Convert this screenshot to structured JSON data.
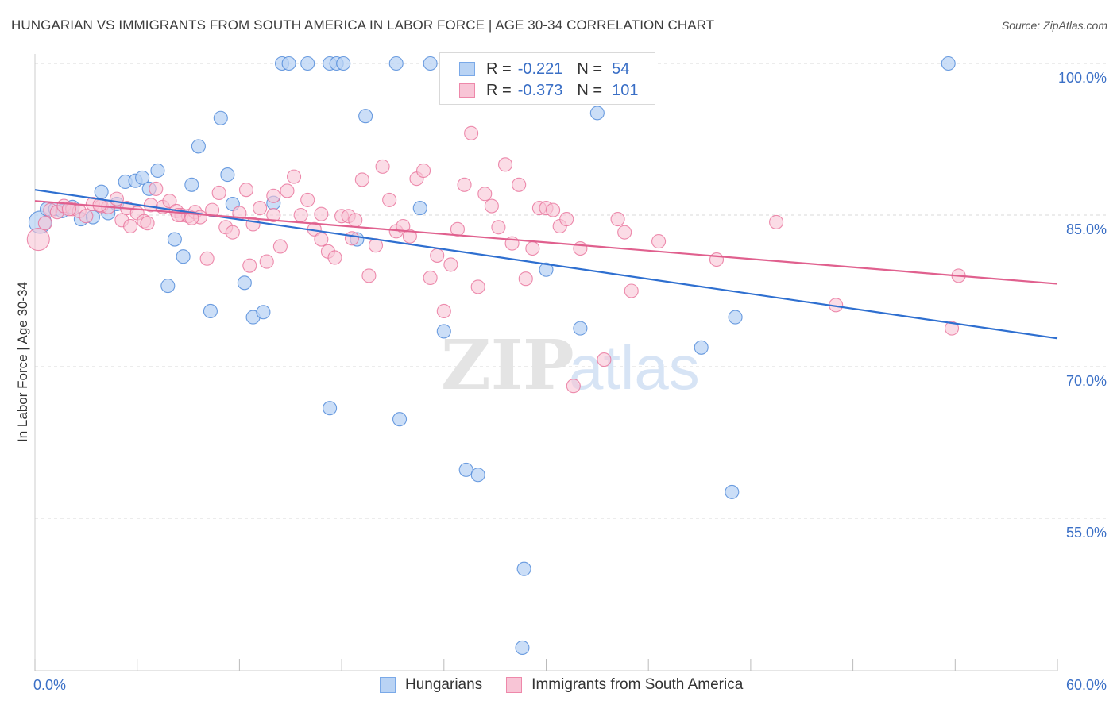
{
  "header": {
    "title": "HUNGARIAN VS IMMIGRANTS FROM SOUTH AMERICA IN LABOR FORCE | AGE 30-34 CORRELATION CHART",
    "source": "Source: ZipAtlas.com"
  },
  "watermark": {
    "zip": "ZIP",
    "atlas": "atlas"
  },
  "legend_top": {
    "rows": [
      {
        "r_label": "R =",
        "r_value": "-0.221",
        "n_label": "N =",
        "n_value": "54",
        "color": "#7aa9e8",
        "fill": "#b9d3f4"
      },
      {
        "r_label": "R =",
        "r_value": "-0.373",
        "n_label": "N =",
        "n_value": "101",
        "color": "#ee88aa",
        "fill": "#f8c5d6"
      }
    ]
  },
  "legend_bottom": {
    "items": [
      {
        "label": "Hungarians",
        "color": "#7aa9e8",
        "fill": "#b9d3f4"
      },
      {
        "label": "Immigrants from South America",
        "color": "#ee88aa",
        "fill": "#f8c5d6"
      }
    ]
  },
  "chart_data": {
    "type": "scatter",
    "title": "HUNGARIAN VS IMMIGRANTS FROM SOUTH AMERICA IN LABOR FORCE | AGE 30-34 CORRELATION CHART",
    "xlabel": "",
    "ylabel": "In Labor Force | Age 30-34",
    "xlim": [
      0,
      60
    ],
    "ylim": [
      41,
      102
    ],
    "x_tick_labels": [
      {
        "value": 0,
        "label": "0.0%"
      },
      {
        "value": 60,
        "label": "60.0%"
      }
    ],
    "y_tick_labels": [
      {
        "value": 100,
        "label": "100.0%"
      },
      {
        "value": 85,
        "label": "85.0%"
      },
      {
        "value": 70,
        "label": "70.0%"
      },
      {
        "value": 55,
        "label": "55.0%"
      }
    ],
    "y_gridlines": [
      100,
      85,
      70,
      55
    ],
    "x_minor_ticks": [
      0,
      6,
      12,
      18,
      24,
      30,
      36,
      42,
      48,
      54,
      60
    ],
    "grid": true,
    "legend_position": "top-center",
    "series": [
      {
        "name": "Hungarians",
        "color": "#4a86d8",
        "fill": "#b9d3f4",
        "trend": {
          "x": [
            0,
            60
          ],
          "y": [
            87.5,
            72.8
          ]
        },
        "points": [
          [
            0.3,
            84.3
          ],
          [
            0.7,
            85.6
          ],
          [
            1.2,
            85.6
          ],
          [
            1.6,
            85.4
          ],
          [
            2.2,
            85.8
          ],
          [
            2.7,
            84.6
          ],
          [
            3.4,
            84.8
          ],
          [
            3.9,
            87.3
          ],
          [
            4.3,
            85.2
          ],
          [
            4.8,
            86.1
          ],
          [
            5.3,
            88.3
          ],
          [
            5.9,
            88.4
          ],
          [
            6.3,
            88.7
          ],
          [
            6.7,
            87.6
          ],
          [
            7.2,
            89.4
          ],
          [
            7.8,
            78.0
          ],
          [
            8.2,
            82.6
          ],
          [
            8.7,
            80.9
          ],
          [
            9.2,
            88.0
          ],
          [
            9.6,
            91.8
          ],
          [
            10.3,
            75.5
          ],
          [
            10.9,
            94.6
          ],
          [
            11.3,
            89.0
          ],
          [
            11.6,
            86.1
          ],
          [
            12.3,
            78.3
          ],
          [
            12.8,
            74.9
          ],
          [
            13.4,
            75.4
          ],
          [
            14.0,
            86.2
          ],
          [
            14.5,
            100.0
          ],
          [
            14.9,
            100.0
          ],
          [
            16.0,
            100.0
          ],
          [
            17.3,
            100.0
          ],
          [
            17.7,
            100.0
          ],
          [
            18.1,
            100.0
          ],
          [
            17.3,
            65.9
          ],
          [
            18.9,
            82.6
          ],
          [
            19.4,
            94.8
          ],
          [
            21.2,
            100.0
          ],
          [
            21.4,
            64.8
          ],
          [
            22.6,
            85.7
          ],
          [
            23.2,
            100.0
          ],
          [
            24.0,
            73.5
          ],
          [
            25.3,
            59.8
          ],
          [
            26.0,
            59.3
          ],
          [
            27.2,
            100.0
          ],
          [
            28.7,
            50.0
          ],
          [
            28.6,
            42.2
          ],
          [
            30.0,
            79.6
          ],
          [
            32.0,
            73.8
          ],
          [
            33.0,
            95.1
          ],
          [
            39.1,
            71.9
          ],
          [
            41.1,
            74.9
          ],
          [
            40.9,
            57.6
          ],
          [
            53.6,
            100.0
          ]
        ]
      },
      {
        "name": "Immigrants from South America",
        "color": "#e8709a",
        "fill": "#f8c5d6",
        "trend": {
          "x": [
            0,
            60
          ],
          "y": [
            86.4,
            78.2
          ]
        },
        "points": [
          [
            0.2,
            82.6
          ],
          [
            0.6,
            84.2
          ],
          [
            0.9,
            85.5
          ],
          [
            1.3,
            85.3
          ],
          [
            1.7,
            85.9
          ],
          [
            2.2,
            85.6
          ],
          [
            2.6,
            85.4
          ],
          [
            3.0,
            84.9
          ],
          [
            3.4,
            86.1
          ],
          [
            3.9,
            85.9
          ],
          [
            4.3,
            85.8
          ],
          [
            4.8,
            86.6
          ],
          [
            5.1,
            84.5
          ],
          [
            5.4,
            85.7
          ],
          [
            5.6,
            83.9
          ],
          [
            6.0,
            85.2
          ],
          [
            6.4,
            84.4
          ],
          [
            6.8,
            86.0
          ],
          [
            7.1,
            87.6
          ],
          [
            7.5,
            85.8
          ],
          [
            7.9,
            86.4
          ],
          [
            8.3,
            85.4
          ],
          [
            8.6,
            85.0
          ],
          [
            9.0,
            84.9
          ],
          [
            9.4,
            85.3
          ],
          [
            9.7,
            84.8
          ],
          [
            10.1,
            80.7
          ],
          [
            10.4,
            85.5
          ],
          [
            10.8,
            87.2
          ],
          [
            11.2,
            83.8
          ],
          [
            11.6,
            83.3
          ],
          [
            12.0,
            85.2
          ],
          [
            12.4,
            87.5
          ],
          [
            12.8,
            84.1
          ],
          [
            13.2,
            85.7
          ],
          [
            13.6,
            80.4
          ],
          [
            14.0,
            85.0
          ],
          [
            14.4,
            81.9
          ],
          [
            14.8,
            87.4
          ],
          [
            15.2,
            88.8
          ],
          [
            15.6,
            85.0
          ],
          [
            16.0,
            86.5
          ],
          [
            16.4,
            83.6
          ],
          [
            16.8,
            82.6
          ],
          [
            17.2,
            81.4
          ],
          [
            17.6,
            80.8
          ],
          [
            18.0,
            84.9
          ],
          [
            18.4,
            84.9
          ],
          [
            18.8,
            84.5
          ],
          [
            19.2,
            88.5
          ],
          [
            19.6,
            79.0
          ],
          [
            20.0,
            82.0
          ],
          [
            20.4,
            89.8
          ],
          [
            20.8,
            86.5
          ],
          [
            21.2,
            83.4
          ],
          [
            21.6,
            83.9
          ],
          [
            22.0,
            82.9
          ],
          [
            22.4,
            88.6
          ],
          [
            22.8,
            89.4
          ],
          [
            23.2,
            78.8
          ],
          [
            23.6,
            81.0
          ],
          [
            24.0,
            75.5
          ],
          [
            24.4,
            80.1
          ],
          [
            24.8,
            83.6
          ],
          [
            25.2,
            88.0
          ],
          [
            25.6,
            93.1
          ],
          [
            26.0,
            77.9
          ],
          [
            26.4,
            87.1
          ],
          [
            26.8,
            85.9
          ],
          [
            27.2,
            83.8
          ],
          [
            27.6,
            90.0
          ],
          [
            28.0,
            82.2
          ],
          [
            28.4,
            88.0
          ],
          [
            28.8,
            78.7
          ],
          [
            29.2,
            81.7
          ],
          [
            29.6,
            85.7
          ],
          [
            30.0,
            85.7
          ],
          [
            30.4,
            85.5
          ],
          [
            30.8,
            83.9
          ],
          [
            31.2,
            84.6
          ],
          [
            31.6,
            68.1
          ],
          [
            32.0,
            81.7
          ],
          [
            33.4,
            70.7
          ],
          [
            34.2,
            84.6
          ],
          [
            34.6,
            83.3
          ],
          [
            35.0,
            77.5
          ],
          [
            36.6,
            82.4
          ],
          [
            40.0,
            80.6
          ],
          [
            43.5,
            84.3
          ],
          [
            47.0,
            76.1
          ],
          [
            53.8,
            73.8
          ],
          [
            54.2,
            79.0
          ],
          [
            14.0,
            86.9
          ],
          [
            9.2,
            84.7
          ],
          [
            12.6,
            80.0
          ],
          [
            18.6,
            82.7
          ],
          [
            6.6,
            84.2
          ],
          [
            16.8,
            85.1
          ],
          [
            8.4,
            85.0
          ],
          [
            3.8,
            86.0
          ],
          [
            2.0,
            85.6
          ]
        ]
      }
    ]
  }
}
